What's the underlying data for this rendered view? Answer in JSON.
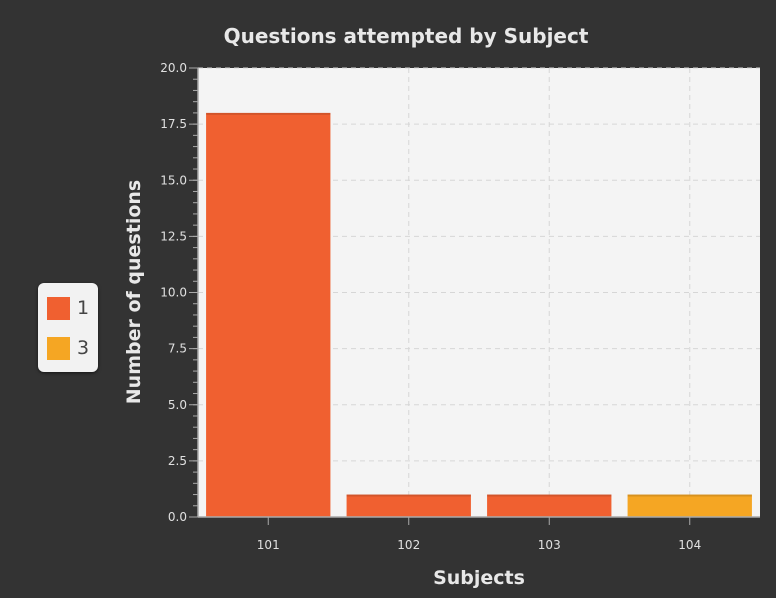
{
  "chart_data": {
    "type": "bar",
    "title": "Questions attempted by Subject",
    "xlabel": "Subjects",
    "ylabel": "Number of questions",
    "categories": [
      "101",
      "102",
      "103",
      "104"
    ],
    "series": [
      {
        "name": "1",
        "color": "#f06030",
        "values": [
          18,
          1,
          1,
          null
        ]
      },
      {
        "name": "3",
        "color": "#f5a623",
        "values": [
          null,
          null,
          null,
          1
        ]
      }
    ],
    "ylim": [
      0,
      20
    ],
    "yticks": [
      "0.0",
      "2.5",
      "5.0",
      "7.5",
      "10.0",
      "12.5",
      "15.0",
      "17.5",
      "20.0"
    ],
    "grid": true,
    "legend_position": "left"
  }
}
